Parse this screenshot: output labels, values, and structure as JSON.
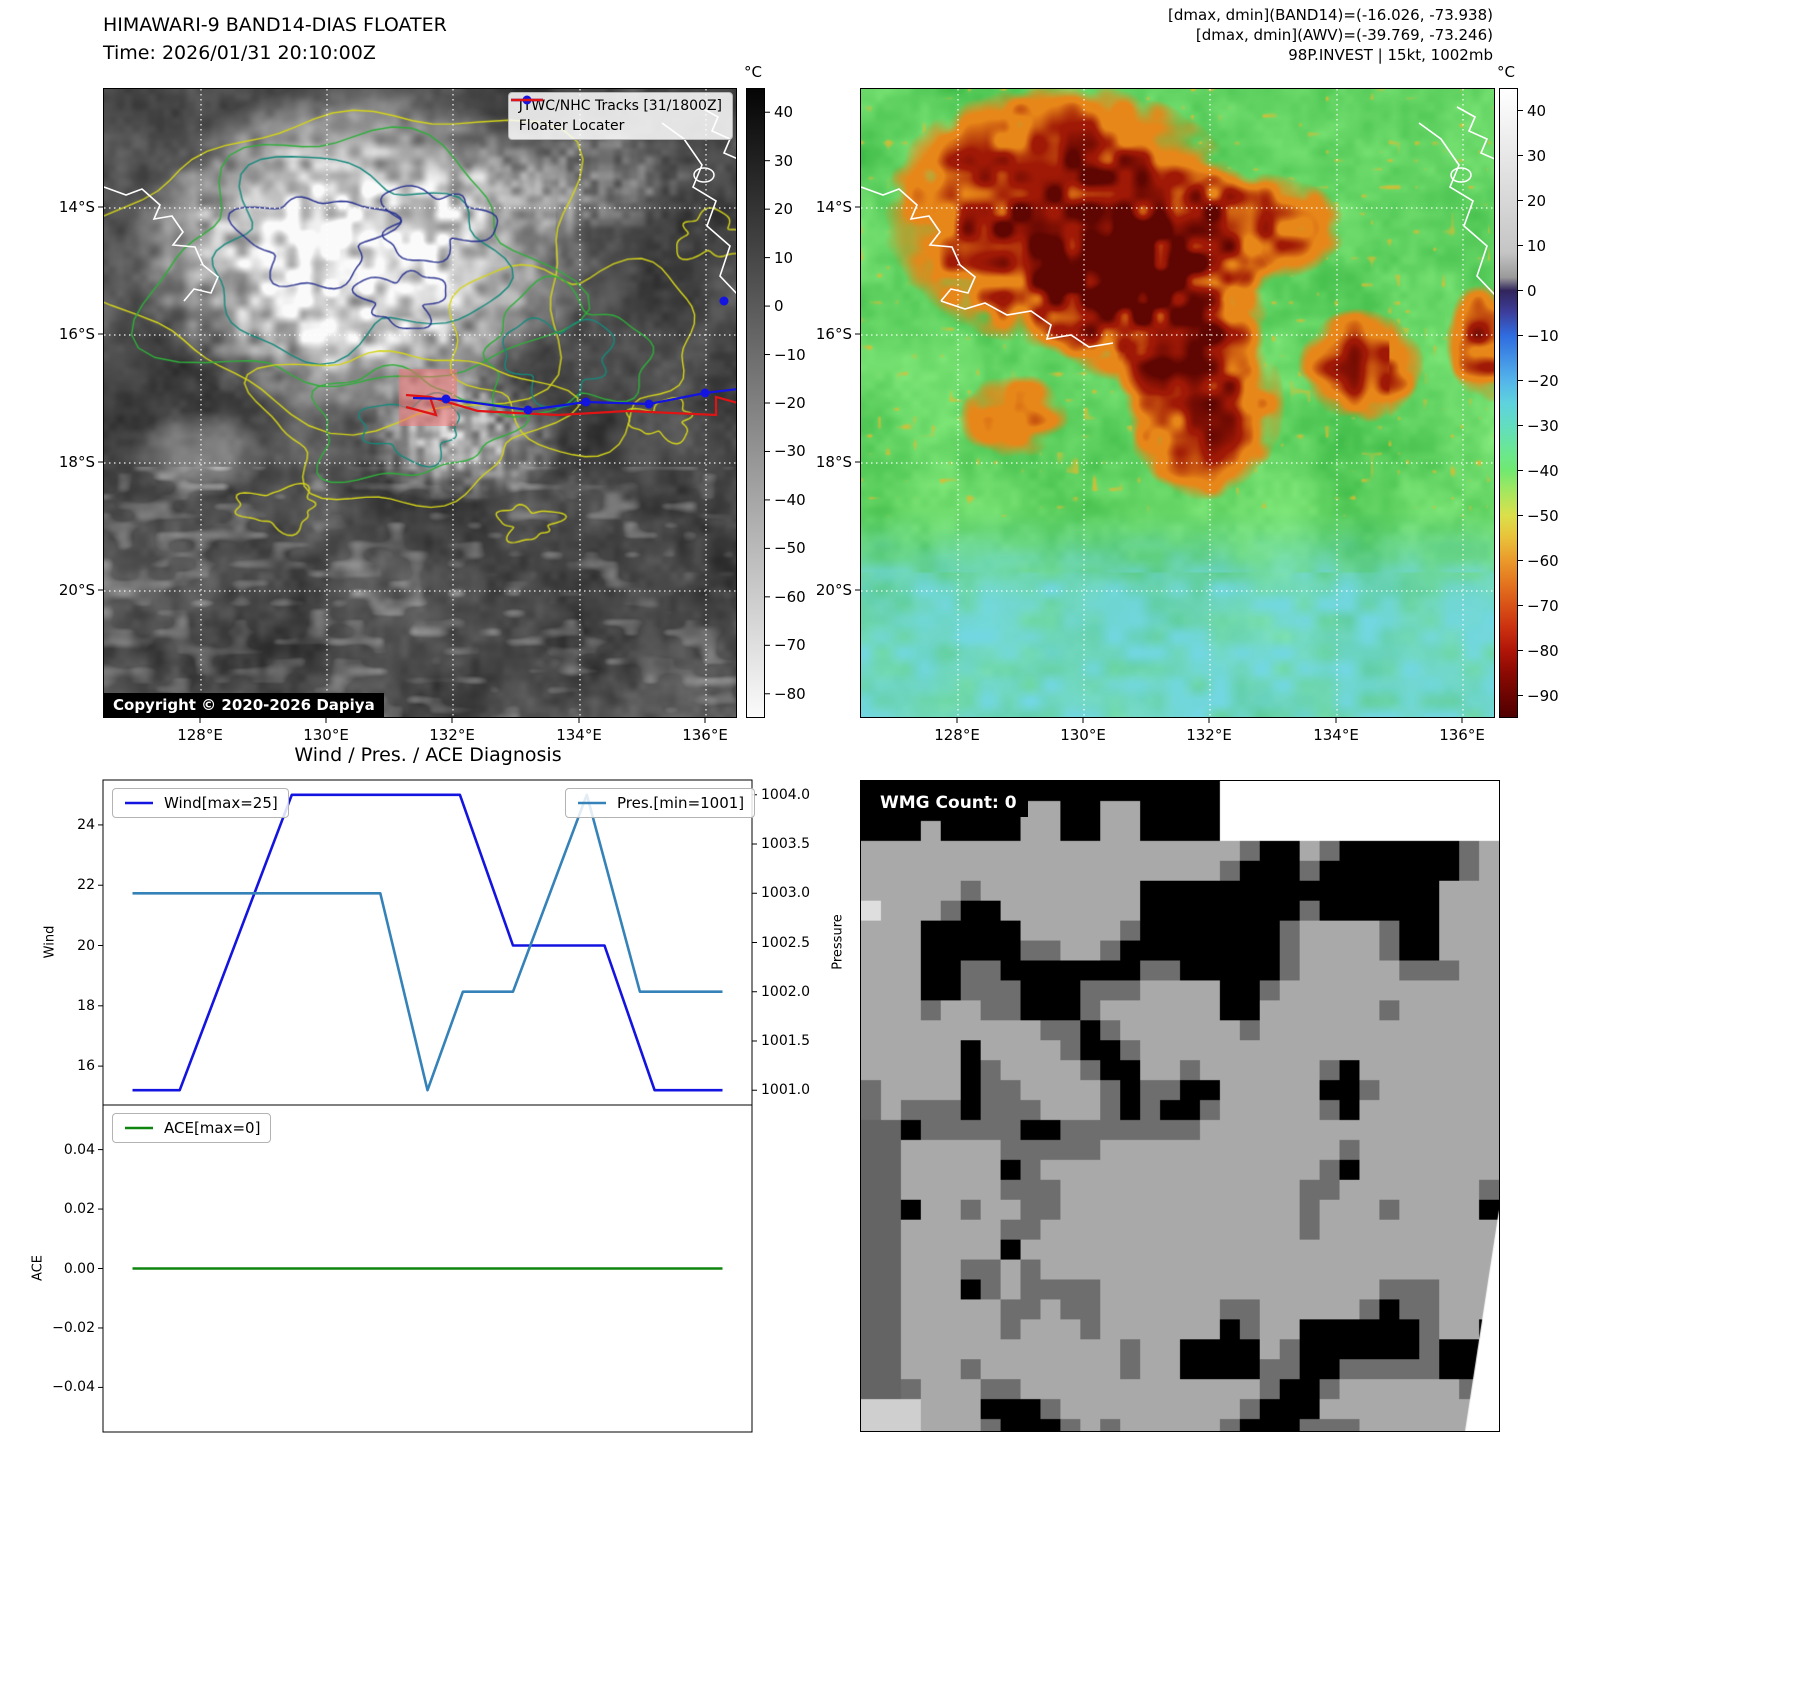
{
  "band14_panel": {
    "title": "HIMAWARI-9 BAND14-DIAS FLOATER",
    "subtitle": "Time: 2026/01/31 20:10:00Z",
    "legend": {
      "track": "JTWC/NHC Tracks [31/1800Z]",
      "track_color": "#1414e0",
      "floater": "Floater Locater",
      "floater_color": "#e01414"
    },
    "copyright": "Copyright © 2020-2026 Dapiya",
    "colorbar": {
      "unit": "°C",
      "tick_values": [
        40,
        30,
        20,
        10,
        0,
        -10,
        -20,
        -30,
        -40,
        -50,
        -60,
        -70,
        -80
      ],
      "tick_labels": [
        "40",
        "30",
        "20",
        "10",
        "0",
        "−10",
        "−20",
        "−30",
        "−40",
        "−50",
        "−60",
        "−70",
        "−80"
      ]
    },
    "lon_ticks": [
      "128°E",
      "130°E",
      "132°E",
      "134°E",
      "136°E"
    ],
    "lat_ticks": [
      "14°S",
      "16°S",
      "18°S",
      "20°S"
    ]
  },
  "awv_panel": {
    "annotations": [
      "[dmax, dmin](BAND14)=(-16.026, -73.938)",
      "[dmax, dmin](AWV)=(-39.769, -73.246)",
      "98P.INVEST | 15kt, 1002mb"
    ],
    "colorbar": {
      "unit": "°C",
      "tick_values": [
        40,
        30,
        20,
        10,
        0,
        -10,
        -20,
        -30,
        -40,
        -50,
        -60,
        -70,
        -80,
        -90
      ],
      "tick_labels": [
        "40",
        "30",
        "20",
        "10",
        "0",
        "−10",
        "−20",
        "−30",
        "−40",
        "−50",
        "−60",
        "−70",
        "−80",
        "−90"
      ]
    },
    "lon_ticks": [
      "128°E",
      "130°E",
      "132°E",
      "134°E",
      "136°E"
    ],
    "lat_ticks": [
      "14°S",
      "16°S",
      "18°S",
      "20°S"
    ]
  },
  "diagnosis_panel": {
    "title": "Wind / Pres. / ACE Diagnosis"
  },
  "wmg_panel": {
    "count_label": "WMG Count: 0"
  },
  "chart_data": [
    {
      "type": "line",
      "title": "Wind / Pres. / ACE Diagnosis",
      "x_unit": "time index",
      "xlim": [
        -0.5,
        10.5
      ],
      "series": [
        {
          "name": "Wind[max=25]",
          "axis": "left",
          "color": "#1414e0",
          "points": [
            [
              0,
              15.2
            ],
            [
              0.8,
              15.2
            ],
            [
              2.7,
              25
            ],
            [
              5.55,
              25
            ],
            [
              6.45,
              20
            ],
            [
              8.0,
              20
            ],
            [
              8.85,
              15.2
            ],
            [
              10,
              15.2
            ]
          ]
        },
        {
          "name": "Pres.[min=1001]",
          "axis": "right",
          "color": "#3582b8",
          "points": [
            [
              0,
              1003
            ],
            [
              4.2,
              1003
            ],
            [
              5.0,
              1001
            ],
            [
              5.6,
              1002
            ],
            [
              6.45,
              1002
            ],
            [
              7.7,
              1004
            ],
            [
              8.6,
              1002
            ],
            [
              10,
              1002
            ]
          ]
        }
      ],
      "left_axis": {
        "label": "Wind",
        "tick_values": [
          16,
          18,
          20,
          22,
          24
        ],
        "tick_labels": [
          "16",
          "18",
          "20",
          "22",
          "24"
        ],
        "min": 14.71,
        "max": 25.49
      },
      "right_axis": {
        "label": "Pressure",
        "tick_values": [
          1001,
          1001.5,
          1002,
          1002.5,
          1003,
          1003.5,
          1004
        ],
        "tick_labels": [
          "1001.0",
          "1001.5",
          "1002.0",
          "1002.5",
          "1003.0",
          "1003.5",
          "1004.0"
        ],
        "min": 1000.85,
        "max": 1004.15
      },
      "legend_position": "upper-left-and-upper-right",
      "grid": false
    },
    {
      "type": "line",
      "xlim": [
        -0.5,
        10.5
      ],
      "series": [
        {
          "name": "ACE[max=0]",
          "axis": "left",
          "color": "#0f840f",
          "points": [
            [
              0,
              0
            ],
            [
              10,
              0
            ]
          ]
        }
      ],
      "left_axis": {
        "label": "ACE",
        "tick_values": [
          -0.04,
          -0.02,
          0,
          0.02,
          0.04
        ],
        "tick_labels": [
          "−0.04",
          "−0.02",
          "0.00",
          "0.02",
          "0.04"
        ],
        "min": -0.055,
        "max": 0.055
      },
      "legend_position": "upper-left",
      "grid": false
    }
  ]
}
